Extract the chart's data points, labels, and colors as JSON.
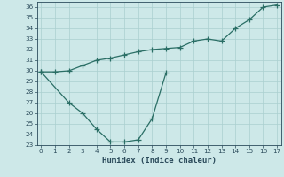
{
  "line1_x": [
    0,
    1,
    2,
    3,
    4,
    5,
    6,
    7,
    8,
    9,
    10,
    11,
    12,
    13,
    14,
    15,
    16,
    17
  ],
  "line1_y": [
    29.9,
    29.9,
    30.0,
    30.5,
    31.0,
    31.2,
    31.5,
    31.8,
    32.0,
    32.1,
    32.2,
    32.8,
    33.0,
    32.8,
    34.0,
    34.8,
    36.0,
    36.2
  ],
  "line2_x": [
    0,
    2,
    3,
    4,
    5,
    6,
    7,
    8,
    9
  ],
  "line2_y": [
    29.9,
    27.0,
    26.0,
    24.5,
    23.3,
    23.3,
    23.5,
    25.5,
    29.8
  ],
  "line_color": "#2a6e65",
  "bg_color": "#cde8e8",
  "grid_color": "#aacfcf",
  "xlabel": "Humidex (Indice chaleur)",
  "ylim": [
    23,
    36.5
  ],
  "xlim": [
    -0.3,
    17.3
  ],
  "yticks": [
    23,
    24,
    25,
    26,
    27,
    28,
    29,
    30,
    31,
    32,
    33,
    34,
    35,
    36
  ],
  "xticks": [
    0,
    1,
    2,
    3,
    4,
    5,
    6,
    7,
    8,
    9,
    10,
    11,
    12,
    13,
    14,
    15,
    16,
    17
  ],
  "marker": "+",
  "markersize": 4,
  "linewidth": 0.9,
  "font_color": "#2a4a5a",
  "label_fontsize": 6.5,
  "tick_fontsize": 5.2
}
